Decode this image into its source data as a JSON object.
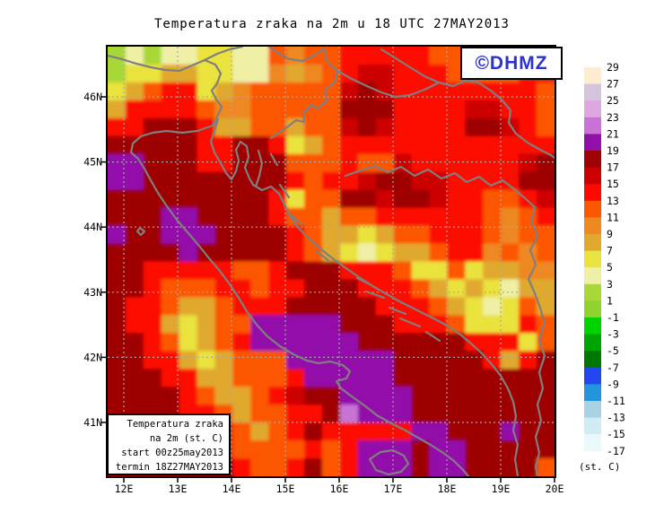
{
  "title": "Temperatura zraka na 2m u 18 UTC 27MAY2013",
  "logo": {
    "text": "©DHMZ"
  },
  "info_box": {
    "lines": [
      "Temperatura zraka",
      "na 2m (st. C)",
      "start 00z25may2013",
      "termin 18Z27MAY2013"
    ]
  },
  "axes": {
    "lat_labels": [
      "46N",
      "45N",
      "44N",
      "43N",
      "42N",
      "41N"
    ],
    "lon_labels": [
      "12E",
      "13E",
      "14E",
      "15E",
      "16E",
      "17E",
      "18E",
      "19E",
      "20E"
    ]
  },
  "colorbar": {
    "unit_label": "(st. C)",
    "tick_labels": [
      "29",
      "27",
      "25",
      "23",
      "21",
      "19",
      "17",
      "15",
      "13",
      "11",
      "9",
      "7",
      "5",
      "3",
      "1",
      "-1",
      "-3",
      "-5",
      "-7",
      "-9",
      "-11",
      "-13",
      "-15",
      "-17"
    ],
    "colors": [
      "#fdeccf",
      "#d4c5dc",
      "#dfa7e0",
      "#c973d6",
      "#9210aa",
      "#9e0202",
      "#cd0000",
      "#fc0a00",
      "#fd5600",
      "#ee8822",
      "#e0a92e",
      "#eae23e",
      "#eff0a6",
      "#a8d838",
      "#8ed32f",
      "#00d400",
      "#00a400",
      "#007800",
      "#2247ef",
      "#2395dd",
      "#a9d3e3",
      "#d2ecf3",
      "#ecf9fc"
    ]
  },
  "chart_data": {
    "type": "heatmap",
    "title": "Temperatura zraka na 2m u 18 UTC 27MAY2013",
    "variable": "air temperature at 2 m (st. C)",
    "valid_time": "18 UTC 27MAY2013",
    "run_start": "00z 25may2013",
    "lon_range_deg_e": [
      11.7,
      20.0
    ],
    "lat_range_deg_n": [
      40.2,
      46.8
    ],
    "grid_note": "24 rows x 25 cols, row 0 = north, col 0 = west; each letter = 2 deg C temperature bucket",
    "legend_buckets": {
      "g": {
        "range_c": "1 to 3",
        "color": "#a8d838"
      },
      "y": {
        "range_c": "3 to 5",
        "color": "#eff0a6"
      },
      "Y": {
        "range_c": "5 to 7",
        "color": "#eae23e"
      },
      "A": {
        "range_c": "7 to 9",
        "color": "#e0a92e"
      },
      "O": {
        "range_c": "9 to 11",
        "color": "#ee8822"
      },
      "o": {
        "range_c": "11 to 13",
        "color": "#fd5600"
      },
      "r": {
        "range_c": "13 to 15",
        "color": "#fc0a00"
      },
      "R": {
        "range_c": "15 to 17",
        "color": "#cd0000"
      },
      "D": {
        "range_c": "17 to 19",
        "color": "#9e0202"
      },
      "P": {
        "range_c": "19 to 21",
        "color": "#9210aa"
      },
      "V": {
        "range_c": "21 to 23",
        "color": "#c973d6"
      }
    },
    "grid_rows": [
      "gygyyYYyyoOoorrrrrooooorr",
      "gYYAAYYyyOAOorRRrrroooorr",
      "YAorrYAOoooooRDRrrrrrrrro",
      "ArrrroOOoooooDDDrrrrRRrro",
      "rrDDDrAAooAooRDRrrrrDDRro",
      "DDDDDrrDDrYAorrrrrrrrrrrr",
      "PPDDDrrDDDooorooRrrrrrrRD",
      "PPDDDDDDDDrorrRDDRRrrrrDD",
      "DDDDDDDDDrYooDDRDDRrroorR",
      "DDDPPDDDDrooAoorrrrrroOor",
      "PDDPPPDDDDroAAYAoorrroOoo",
      "DDDDPDDDDDroAYyYAAorrOoOo",
      "DDrrrrroorDDDrrroYYoYAAOO",
      "DDrooorrorrDDDrrroAYAYyAA",
      "DrroAAorrrDDDDDrrroAYyYoA",
      "DrrAYAooPPPPPDDDrrroYYYro",
      "DDroYAorPPPPPPDDDDDDrrrYo",
      "DDrrAYAoooPPPPPPDDDDDrArD",
      "DDDrrAAooorPPPPPDDDDDDDDD",
      "DDDDroAAorRDDPPPPDDDDDDDD",
      "DDDDrroAoorrDVPPPDDDDDDDD",
      "DDDDDrroAorDrrrrrPPDDDPDD",
      "DDDDDDroooororPPPDPPDDDDD",
      "DDDDDDDroorDorPPPDPPDDDDo"
    ]
  }
}
